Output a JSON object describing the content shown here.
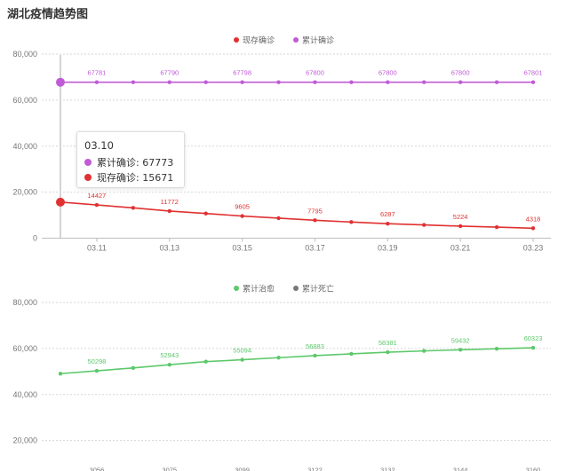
{
  "page": {
    "title": "湖北疫情趋势图"
  },
  "colors": {
    "current": "#e03131",
    "cumulative": "#c05ad6",
    "cured": "#5cc86b",
    "death": "#777777"
  },
  "tooltip": {
    "title": "03.10",
    "rows": [
      {
        "label": "累计确诊: 67773",
        "color": "#c05ad6"
      },
      {
        "label": "现存确诊: 15671",
        "color": "#e03131"
      }
    ]
  },
  "chart_data": [
    {
      "type": "line",
      "legend": [
        "现存确诊",
        "累计确诊"
      ],
      "x": [
        "03.10",
        "03.11",
        "03.12",
        "03.13",
        "03.14",
        "03.15",
        "03.16",
        "03.17",
        "03.18",
        "03.19",
        "03.20",
        "03.21",
        "03.22",
        "03.23"
      ],
      "x_tick_labels": [
        "03.11",
        "03.13",
        "03.15",
        "03.17",
        "03.19",
        "03.21",
        "03.23"
      ],
      "y_tick_labels": [
        "0",
        "20,000",
        "40,000",
        "60,000",
        "80,000"
      ],
      "ylim": [
        0,
        80000
      ],
      "series": [
        {
          "name": "现存确诊",
          "values": [
            15671,
            14427,
            13174,
            11772,
            10733,
            9605,
            8700,
            7795,
            7000,
            6287,
            5750,
            5224,
            4800,
            4318
          ],
          "labels": [
            "",
            "14427",
            "",
            "11772",
            "",
            "9605",
            "",
            "7795",
            "",
            "6287",
            "",
            "5224",
            "",
            "4318"
          ]
        },
        {
          "name": "累计确诊",
          "values": [
            67773,
            67781,
            67786,
            67790,
            67794,
            67798,
            67799,
            67800,
            67800,
            67800,
            67800,
            67800,
            67801,
            67801
          ],
          "labels": [
            "",
            "67781",
            "",
            "67790",
            "",
            "67798",
            "",
            "67800",
            "",
            "67800",
            "",
            "67800",
            "",
            "67801"
          ]
        }
      ],
      "grid": true,
      "legend_position": "top-center"
    },
    {
      "type": "line",
      "legend": [
        "累计治愈",
        "累计死亡"
      ],
      "x": [
        "03.10",
        "03.11",
        "03.12",
        "03.13",
        "03.14",
        "03.15",
        "03.16",
        "03.17",
        "03.18",
        "03.19",
        "03.20",
        "03.21",
        "03.22",
        "03.23"
      ],
      "y_tick_labels": [
        "20,000",
        "40,000",
        "60,000",
        "80,000"
      ],
      "ylim": [
        0,
        80000
      ],
      "series": [
        {
          "name": "累计治愈",
          "values": [
            49056,
            50298,
            51553,
            52943,
            54278,
            55094,
            56003,
            56883,
            57678,
            58381,
            58942,
            59432,
            59879,
            60323
          ],
          "labels": [
            "",
            "50298",
            "",
            "52943",
            "",
            "55094",
            "",
            "56883",
            "",
            "58381",
            "",
            "59432",
            "",
            "60323"
          ]
        },
        {
          "name": "累计死亡",
          "values": [
            3046,
            3056,
            3062,
            3075,
            3085,
            3099,
            3111,
            3122,
            3130,
            3132,
            3139,
            3144,
            3153,
            3160
          ],
          "labels": [
            "",
            "3056",
            "",
            "3075",
            "",
            "3099",
            "",
            "3122",
            "",
            "3132",
            "",
            "3144",
            "",
            "3160"
          ]
        }
      ],
      "grid": true,
      "legend_position": "top-center"
    }
  ]
}
